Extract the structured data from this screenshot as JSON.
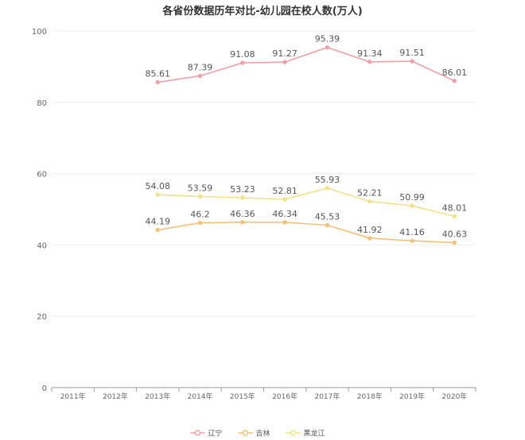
{
  "chart_data": {
    "type": "line",
    "title": "各省份数据历年对比-幼儿园在校人数(万人)",
    "xlabel": "",
    "ylabel": "",
    "categories": [
      "2011年",
      "2012年",
      "2013年",
      "2014年",
      "2015年",
      "2016年",
      "2017年",
      "2018年",
      "2019年",
      "2020年"
    ],
    "ylim": [
      0,
      100
    ],
    "yticks": [
      0,
      20,
      40,
      60,
      80,
      100
    ],
    "grid": true,
    "legend_position": "bottom-center",
    "series": [
      {
        "name": "辽宁",
        "color": "#f0a0a8",
        "values": [
          null,
          null,
          85.61,
          87.39,
          91.08,
          91.27,
          95.39,
          91.34,
          91.51,
          86.01
        ]
      },
      {
        "name": "吉林",
        "color": "#f2c27d",
        "values": [
          null,
          null,
          44.19,
          46.2,
          46.36,
          46.34,
          45.53,
          41.92,
          41.16,
          40.63
        ]
      },
      {
        "name": "黑龙江",
        "color": "#f3e08a",
        "values": [
          null,
          null,
          54.08,
          53.59,
          53.23,
          52.81,
          55.93,
          52.21,
          50.99,
          48.01
        ]
      }
    ]
  }
}
